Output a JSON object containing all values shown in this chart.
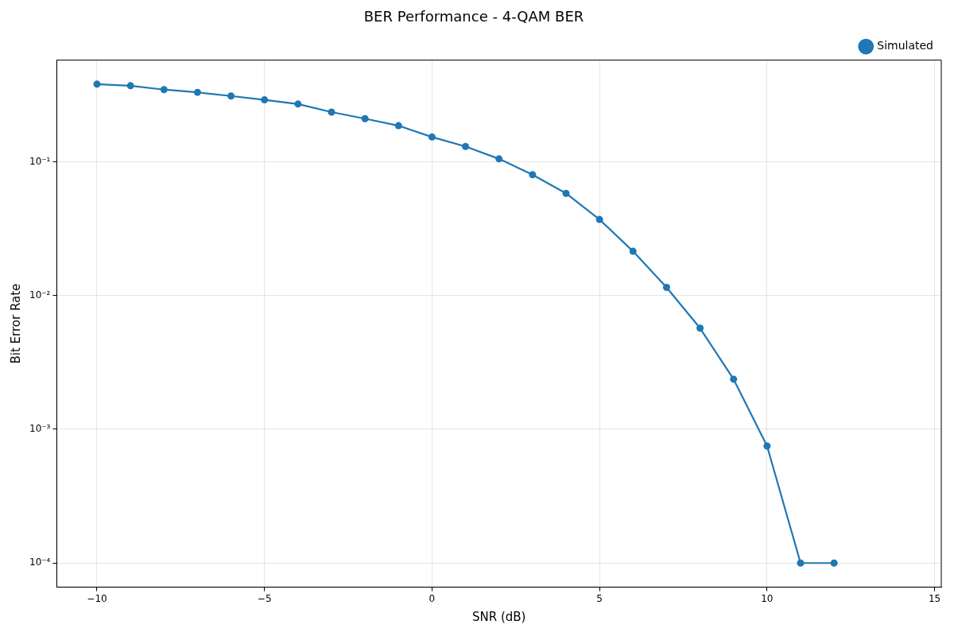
{
  "chart_data": {
    "type": "line",
    "title": "BER Performance - 4-QAM BER",
    "xlabel": "SNR (dB)",
    "ylabel": "Bit Error Rate",
    "x": [
      -10,
      -9,
      -8,
      -7,
      -6,
      -5,
      -4,
      -3,
      -2,
      -1,
      0,
      1,
      2,
      3,
      4,
      5,
      6,
      7,
      8,
      9,
      10,
      11,
      12
    ],
    "series": [
      {
        "name": "Simulated",
        "color": "#1f77b4",
        "values": [
          0.38,
          0.37,
          0.346,
          0.33,
          0.31,
          0.29,
          0.27,
          0.235,
          0.21,
          0.186,
          0.153,
          0.13,
          0.105,
          0.08,
          0.058,
          0.037,
          0.0214,
          0.0115,
          0.0057,
          0.00237,
          0.00075,
          0.0001,
          0.0001
        ]
      }
    ],
    "xlim": [
      -11.2,
      15.2
    ],
    "xticks": [
      {
        "value": -10,
        "label": "−10"
      },
      {
        "value": -5,
        "label": "−5"
      },
      0,
      5,
      10,
      15
    ],
    "ylim": [
      6.6e-05,
      0.575
    ],
    "yticks": [
      {
        "value": 0.0001,
        "label": "10⁻⁴"
      },
      {
        "value": 0.001,
        "label": "10⁻³"
      },
      {
        "value": 0.01,
        "label": "10⁻²"
      },
      {
        "value": 0.1,
        "label": "10⁻¹"
      }
    ],
    "log": "y",
    "grid": true,
    "legend": "top right",
    "marker": "circle",
    "line_style": "solid"
  }
}
